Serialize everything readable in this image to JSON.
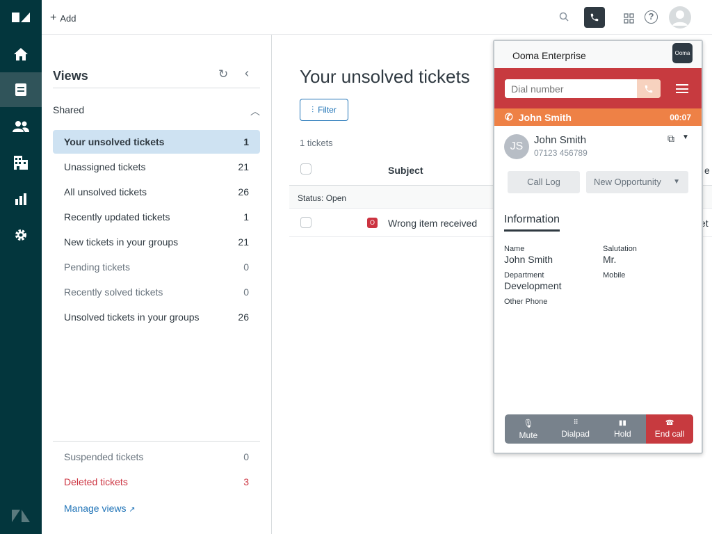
{
  "nav": {
    "items": [
      "home",
      "tickets",
      "customers",
      "organizations",
      "reporting",
      "admin"
    ]
  },
  "topbar": {
    "add_label": "Add"
  },
  "views": {
    "title": "Views",
    "section": "Shared",
    "items": [
      {
        "label": "Your unsolved tickets",
        "count": "1"
      },
      {
        "label": "Unassigned tickets",
        "count": "21"
      },
      {
        "label": "All unsolved tickets",
        "count": "26"
      },
      {
        "label": "Recently updated tickets",
        "count": "1"
      },
      {
        "label": "New tickets in your groups",
        "count": "21"
      },
      {
        "label": "Pending tickets",
        "count": "0"
      },
      {
        "label": "Recently solved tickets",
        "count": "0"
      },
      {
        "label": "Unsolved tickets in your groups",
        "count": "26"
      }
    ],
    "suspended": {
      "label": "Suspended tickets",
      "count": "0"
    },
    "deleted": {
      "label": "Deleted tickets",
      "count": "3"
    },
    "manage": "Manage views"
  },
  "main": {
    "title": "Your unsolved tickets",
    "filter": "Filter",
    "count": "1 tickets",
    "col_subject": "Subject",
    "col_partial": "e",
    "group": "Status: Open",
    "rows": [
      {
        "status": "O",
        "subject": "Wrong item received",
        "partial": "et"
      }
    ]
  },
  "panel": {
    "title": "Ooma Enterprise",
    "logo": "Ooma",
    "dial_placeholder": "Dial number",
    "call": {
      "name": "John Smith",
      "timer": "00:07"
    },
    "contact": {
      "initials": "JS",
      "name": "John Smith",
      "phone": "07123 456789"
    },
    "call_log": "Call Log",
    "new_opportunity": "New Opportunity",
    "info_tab": "Information",
    "fields": [
      {
        "label": "Name",
        "value": "John Smith"
      },
      {
        "label": "Salutation",
        "value": "Mr."
      },
      {
        "label": "Department",
        "value": "Development"
      },
      {
        "label": "Mobile",
        "value": ""
      },
      {
        "label": "Other Phone",
        "value": ""
      }
    ],
    "controls": {
      "mute": "Mute",
      "dialpad": "Dialpad",
      "hold": "Hold",
      "end": "End call"
    },
    "colors": {
      "red": "#c73a3f",
      "orange": "#ee8146",
      "grey": "#78828c"
    }
  }
}
